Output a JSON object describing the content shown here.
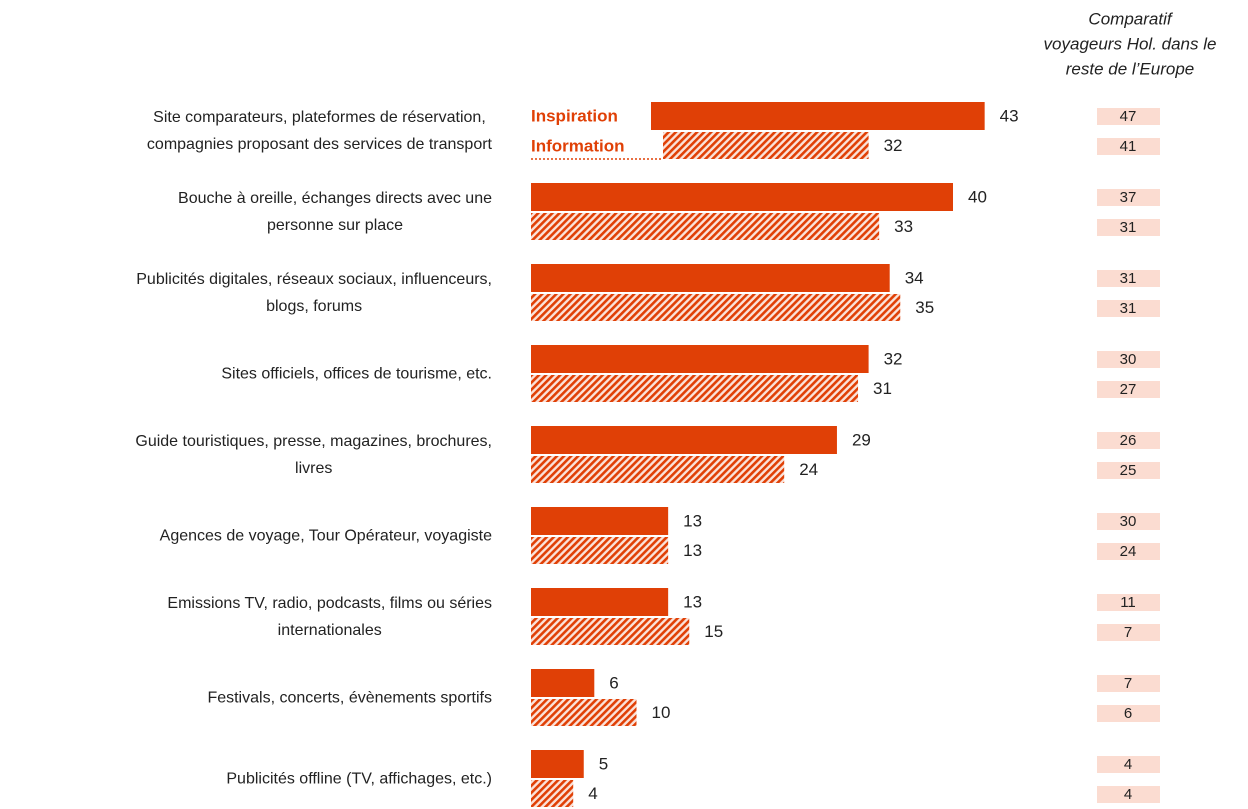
{
  "chart_data": {
    "type": "bar",
    "orientation": "horizontal",
    "categories": [
      "Site comparateurs, plateformes de réservation,\ncompagnies proposant des services de transport",
      "Bouche à oreille, échanges directs avec une\npersonne sur place",
      "Publicités digitales, réseaux sociaux, influenceurs,\nblogs, forums",
      "Sites officiels, offices de tourisme, etc.",
      "Guide touristiques, presse, magazines, brochures,\nlivres",
      "Agences de voyage, Tour Opérateur, voyagiste",
      "Emissions TV, radio, podcasts, films ou séries\ninternationales",
      "Festivals, concerts, évènements sportifs",
      "Publicités offline (TV, affichages, etc.)"
    ],
    "series": [
      {
        "name": "Inspiration",
        "color": "#e04006",
        "pattern": "solid",
        "values": [
          43,
          40,
          34,
          32,
          29,
          13,
          13,
          6,
          5
        ],
        "europe_values": [
          47,
          37,
          31,
          30,
          26,
          30,
          11,
          7,
          4
        ]
      },
      {
        "name": "Information",
        "color": "#e04006",
        "pattern": "hatched",
        "values": [
          32,
          33,
          35,
          31,
          24,
          13,
          15,
          10,
          4
        ],
        "europe_values": [
          41,
          31,
          31,
          27,
          25,
          24,
          7,
          6,
          4
        ]
      }
    ],
    "comparison_title": [
      "Comparatif",
      "voyageurs Hol. dans le",
      "reste de l’Europe"
    ],
    "comparison_color": "#fbdcd1"
  }
}
